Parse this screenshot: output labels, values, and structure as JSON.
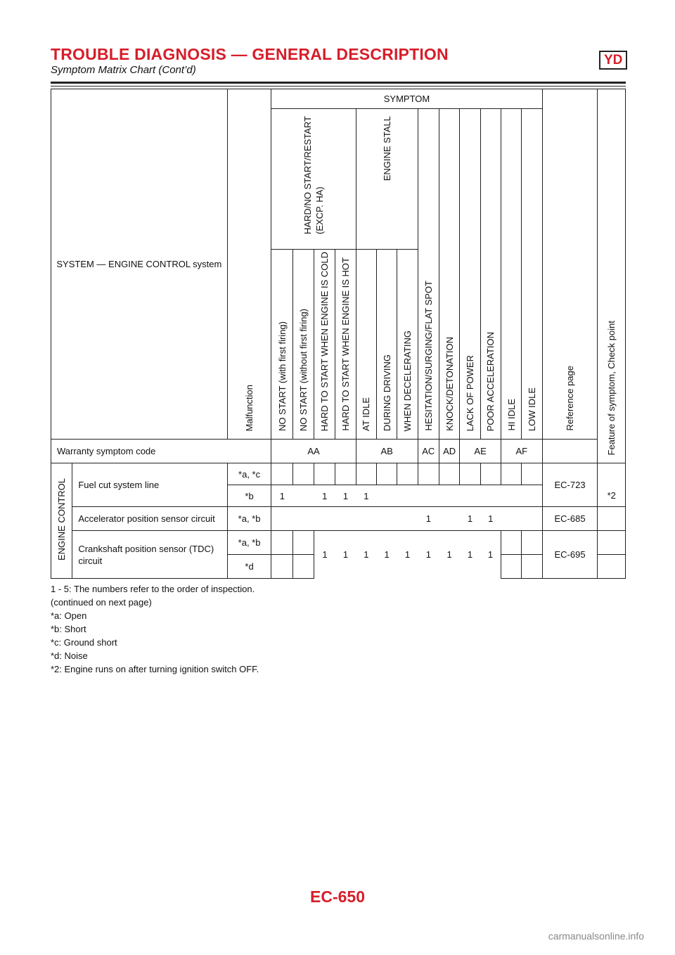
{
  "header": {
    "title": "TROUBLE DIAGNOSIS — GENERAL DESCRIPTION",
    "badge": "YD",
    "subtitle": "Symptom Matrix Chart (Cont’d)"
  },
  "table": {
    "system_label": "SYSTEM — ENGINE CONTROL system",
    "malfunction_label": "Malfunction",
    "symptom_label": "SYMPTOM",
    "group_hard_start": "HARD/NO START/RESTART (EXCP. HA)",
    "group_hard_start_line1": "HARD/NO START/RESTART",
    "group_hard_start_line2": "(EXCP. HA)",
    "group_engine_stall": "ENGINE STALL",
    "symptoms": [
      "NO START (with first firing)",
      "NO START (without first firing)",
      "HARD TO START WHEN ENGINE IS COLD",
      "HARD TO START WHEN ENGINE IS HOT",
      "AT IDLE",
      "DURING DRIVING",
      "WHEN DECELERATING",
      "HESITATION/SURGING/FLAT SPOT",
      "KNOCK/DETONATION",
      "LACK OF POWER",
      "POOR ACCELERATION",
      "HI IDLE",
      "LOW IDLE"
    ],
    "reference_label": "Reference page",
    "feature_label": "Feature of symptom, Check point",
    "warranty_label": "Warranty symptom code",
    "codes": [
      "AA",
      "AB",
      "AC",
      "AD",
      "AE",
      "AF"
    ],
    "section_label": "ENGINE CONTROL",
    "rows": {
      "fuel_cut": {
        "name": "Fuel cut system line",
        "mal_1": "*a, *c",
        "mal_2": "*b",
        "vals_2": [
          "1",
          "",
          "1",
          "1",
          "1"
        ],
        "ref": "EC-723",
        "feature": "*2"
      },
      "accel": {
        "name": "Accelerator position sensor circuit",
        "mal": "*a, *b",
        "v8": "1",
        "v10": "1",
        "v11": "1",
        "ref": "EC-685"
      },
      "crank": {
        "name": "Crankshaft position sensor (TDC) circuit",
        "mal_1": "*a, *b",
        "mal_2": "*d",
        "vals": [
          "1",
          "1",
          "1",
          "1",
          "1",
          "1",
          "1",
          "1",
          "1"
        ],
        "ref": "EC-695"
      }
    }
  },
  "notes": [
    "1 - 5: The numbers refer to the order of inspection.",
    "(continued on next page)",
    "*a: Open",
    "*b: Short",
    "*c: Ground short",
    "*d: Noise",
    "*2: Engine runs on after turning ignition switch OFF."
  ],
  "page_number": "EC-650",
  "watermark": "carmanualsonline.info"
}
